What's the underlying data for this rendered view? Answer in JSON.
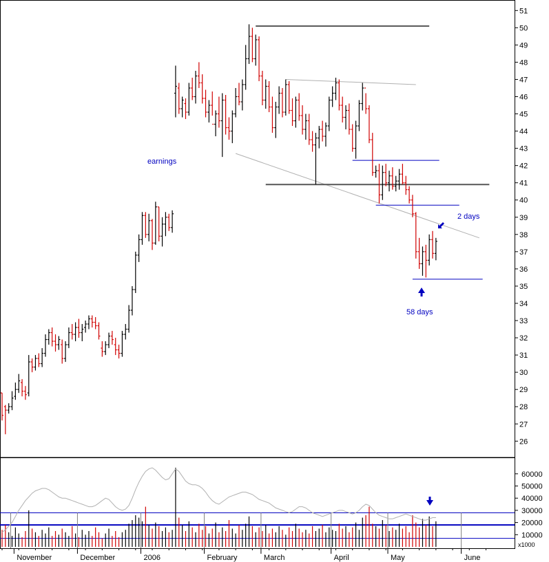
{
  "chart_data": [
    {
      "type": "ohlc",
      "title": "",
      "ylim": [
        25,
        51.8
      ],
      "yticks": [
        26,
        27,
        28,
        29,
        30,
        31,
        32,
        33,
        34,
        35,
        36,
        37,
        38,
        39,
        40,
        41,
        42,
        43,
        44,
        45,
        46,
        47,
        48,
        49,
        50,
        51
      ],
      "grid": false,
      "colors": {
        "up": "#000000",
        "down": "#d00000",
        "line": "#0000c0",
        "dark_line": "#555555",
        "light_line": "#b0b0b0",
        "note": "#0000c0"
      },
      "annotations": {
        "earnings": "earnings",
        "two_days": "2 days",
        "fifty_eight_days": "58 days"
      },
      "bars": [
        [
          0,
          28.8,
          28.8,
          27.2,
          27.5
        ],
        [
          1,
          28.0,
          28.1,
          26.4,
          27.8
        ],
        [
          2,
          27.8,
          28.2,
          27.6,
          28.0
        ],
        [
          3,
          28.0,
          28.9,
          27.8,
          28.5
        ],
        [
          4,
          28.6,
          29.4,
          28.4,
          29.0
        ],
        [
          5,
          29.0,
          29.9,
          28.8,
          29.5
        ],
        [
          6,
          29.4,
          29.6,
          28.6,
          28.9
        ],
        [
          7,
          28.9,
          29.2,
          28.4,
          28.7
        ],
        [
          8,
          28.8,
          31.0,
          28.6,
          30.6
        ],
        [
          9,
          30.6,
          30.8,
          30.0,
          30.3
        ],
        [
          10,
          30.3,
          31.0,
          30.1,
          30.8
        ],
        [
          11,
          30.8,
          31.1,
          30.3,
          30.5
        ],
        [
          12,
          30.5,
          31.4,
          30.3,
          31.1
        ],
        [
          13,
          31.1,
          32.2,
          30.9,
          31.9
        ],
        [
          14,
          31.9,
          32.5,
          31.6,
          32.3
        ],
        [
          15,
          32.3,
          32.6,
          31.5,
          31.8
        ],
        [
          16,
          31.8,
          32.2,
          31.2,
          31.6
        ],
        [
          17,
          31.6,
          32.1,
          31.3,
          31.9
        ],
        [
          18,
          31.6,
          31.9,
          30.5,
          30.8
        ],
        [
          19,
          30.8,
          31.8,
          30.6,
          31.6
        ],
        [
          20,
          31.6,
          32.6,
          31.4,
          32.3
        ],
        [
          21,
          32.3,
          32.8,
          31.9,
          32.2
        ],
        [
          22,
          32.2,
          32.9,
          31.8,
          32.6
        ],
        [
          23,
          32.6,
          33.1,
          32.0,
          32.3
        ],
        [
          24,
          32.3,
          32.8,
          31.8,
          32.5
        ],
        [
          25,
          32.6,
          33.0,
          32.3,
          32.8
        ],
        [
          26,
          32.8,
          33.3,
          32.5,
          33.1
        ],
        [
          27,
          33.1,
          33.3,
          32.6,
          32.9
        ],
        [
          28,
          32.9,
          33.2,
          32.5,
          32.7
        ],
        [
          29,
          32.7,
          32.9,
          31.9,
          32.1
        ],
        [
          30,
          31.4,
          31.8,
          30.9,
          31.2
        ],
        [
          31,
          31.2,
          31.8,
          31.0,
          31.6
        ],
        [
          32,
          31.6,
          32.3,
          31.4,
          32.1
        ],
        [
          33,
          32.1,
          32.4,
          31.6,
          31.9
        ],
        [
          34,
          31.6,
          32.0,
          31.0,
          31.3
        ],
        [
          35,
          31.3,
          31.6,
          30.8,
          31.1
        ],
        [
          36,
          31.1,
          32.4,
          30.9,
          32.2
        ],
        [
          37,
          32.2,
          32.8,
          31.9,
          32.5
        ],
        [
          38,
          32.5,
          33.9,
          32.3,
          33.6
        ],
        [
          39,
          33.6,
          35.0,
          33.3,
          34.8
        ],
        [
          40,
          34.8,
          37.0,
          34.6,
          36.8
        ],
        [
          41,
          36.8,
          38.0,
          36.4,
          37.7
        ],
        [
          42,
          37.7,
          39.3,
          37.4,
          39.1
        ],
        [
          43,
          39.1,
          39.3,
          37.8,
          38.0
        ],
        [
          44,
          38.0,
          39.2,
          37.6,
          38.8
        ],
        [
          45,
          38.8,
          38.9,
          37.1,
          37.5
        ],
        [
          46,
          37.5,
          39.9,
          37.4,
          39.6
        ],
        [
          47,
          39.6,
          39.6,
          37.6,
          37.9
        ],
        [
          48,
          37.9,
          39.0,
          37.3,
          38.6
        ],
        [
          49,
          38.6,
          39.3,
          37.9,
          39.0
        ],
        [
          50,
          39.0,
          39.2,
          38.2,
          38.4
        ],
        [
          51,
          38.4,
          39.4,
          38.1,
          39.2
        ],
        [
          52,
          46.2,
          47.8,
          44.8,
          46.6
        ],
        [
          53,
          46.5,
          46.8,
          45.0,
          45.3
        ],
        [
          54,
          45.3,
          46.0,
          44.8,
          45.8
        ],
        [
          55,
          45.6,
          45.9,
          44.7,
          45.1
        ],
        [
          56,
          45.1,
          46.8,
          44.9,
          46.5
        ],
        [
          57,
          46.5,
          47.1,
          45.8,
          46.0
        ],
        [
          58,
          46.0,
          47.5,
          45.6,
          47.2
        ],
        [
          59,
          47.2,
          48.0,
          46.5,
          46.8
        ],
        [
          60,
          46.8,
          47.3,
          45.6,
          45.9
        ],
        [
          61,
          45.9,
          46.4,
          44.8,
          45.1
        ],
        [
          62,
          45.1,
          45.8,
          44.5,
          45.5
        ],
        [
          63,
          45.5,
          46.3,
          44.9,
          44.4
        ],
        [
          64,
          44.4,
          45.2,
          43.7,
          45.0
        ],
        [
          65,
          45.0,
          46.0,
          44.2,
          44.6
        ],
        [
          66,
          44.6,
          46.2,
          42.5,
          45.8
        ],
        [
          67,
          45.8,
          46.1,
          43.8,
          44.2
        ],
        [
          68,
          44.2,
          44.8,
          43.5,
          44.0
        ],
        [
          69,
          44.0,
          45.2,
          43.3,
          45.0
        ],
        [
          70,
          45.0,
          46.5,
          44.8,
          46.0
        ],
        [
          71,
          46.0,
          46.8,
          45.5,
          45.7
        ],
        [
          72,
          45.7,
          47.0,
          45.2,
          46.7
        ],
        [
          73,
          46.7,
          49.0,
          46.4,
          48.2
        ],
        [
          74,
          48.2,
          50.2,
          47.9,
          49.5
        ],
        [
          75,
          49.5,
          50.0,
          48.0,
          48.2
        ],
        [
          76,
          48.2,
          49.6,
          47.8,
          49.3
        ],
        [
          77,
          49.3,
          49.5,
          46.9,
          47.2
        ],
        [
          78,
          47.2,
          47.5,
          45.5,
          45.8
        ],
        [
          79,
          45.8,
          47.0,
          45.3,
          46.6
        ],
        [
          80,
          46.6,
          46.9,
          45.1,
          45.4
        ],
        [
          81,
          45.4,
          46.0,
          43.9,
          44.2
        ],
        [
          82,
          44.2,
          45.7,
          43.6,
          45.4
        ],
        [
          83,
          45.4,
          46.6,
          45.0,
          46.2
        ],
        [
          84,
          46.2,
          46.5,
          44.8,
          45.1
        ],
        [
          85,
          45.1,
          47.0,
          44.9,
          46.7
        ],
        [
          86,
          46.7,
          46.9,
          45.0,
          45.2
        ],
        [
          87,
          45.2,
          45.9,
          44.3,
          44.6
        ],
        [
          88,
          44.6,
          46.0,
          44.2,
          45.8
        ],
        [
          89,
          45.8,
          46.2,
          44.6,
          44.9
        ],
        [
          90,
          44.9,
          45.5,
          43.8,
          44.1
        ],
        [
          91,
          44.1,
          45.0,
          43.5,
          44.6
        ],
        [
          92,
          44.6,
          45.0,
          43.2,
          43.5
        ],
        [
          93,
          43.5,
          44.0,
          42.8,
          43.2
        ],
        [
          94,
          43.2,
          43.9,
          40.9,
          43.6
        ],
        [
          95,
          43.6,
          44.3,
          43.0,
          44.1
        ],
        [
          96,
          44.1,
          44.6,
          43.4,
          43.7
        ],
        [
          97,
          43.7,
          44.5,
          43.1,
          44.3
        ],
        [
          98,
          44.3,
          46.0,
          44.0,
          45.8
        ],
        [
          99,
          45.8,
          46.6,
          45.4,
          46.2
        ],
        [
          100,
          46.2,
          47.1,
          45.8,
          46.8
        ],
        [
          101,
          46.8,
          47.0,
          45.2,
          45.5
        ],
        [
          102,
          45.5,
          46.0,
          44.5,
          44.8
        ],
        [
          103,
          44.8,
          45.5,
          44.1,
          45.2
        ],
        [
          104,
          45.2,
          45.6,
          43.8,
          44.1
        ],
        [
          105,
          44.1,
          44.4,
          42.8,
          43.0
        ],
        [
          106,
          43.0,
          44.6,
          42.4,
          44.3
        ],
        [
          107,
          44.3,
          45.8,
          44.0,
          45.6
        ],
        [
          108,
          45.6,
          46.8,
          45.2,
          46.5
        ],
        [
          109,
          46.5,
          46.2,
          45.0,
          45.3
        ],
        [
          110,
          45.3,
          45.5,
          43.3,
          43.5
        ],
        [
          111,
          43.5,
          43.9,
          41.4,
          41.6
        ],
        [
          112,
          41.6,
          42.0,
          41.3,
          41.7
        ],
        [
          113,
          41.7,
          42.1,
          39.8,
          40.3
        ],
        [
          114,
          40.3,
          42.0,
          40.0,
          41.6
        ],
        [
          115,
          41.6,
          42.1,
          40.8,
          41.0
        ],
        [
          116,
          41.0,
          41.7,
          40.5,
          41.4
        ],
        [
          117,
          41.4,
          41.9,
          40.6,
          40.8
        ],
        [
          118,
          40.8,
          41.4,
          40.5,
          41.1
        ],
        [
          119,
          41.1,
          41.8,
          40.6,
          41.5
        ],
        [
          120,
          41.5,
          42.1,
          40.9,
          41.0
        ],
        [
          121,
          41.0,
          41.4,
          40.3,
          40.6
        ],
        [
          122,
          40.6,
          40.8,
          39.8,
          40.0
        ],
        [
          123,
          40.0,
          40.3,
          39.0,
          39.2
        ],
        [
          124,
          39.2,
          39.3,
          36.6,
          37.0
        ],
        [
          125,
          37.0,
          37.8,
          36.0,
          36.3
        ],
        [
          126,
          36.3,
          37.3,
          35.6,
          37.0
        ],
        [
          127,
          37.0,
          37.4,
          35.5,
          36.5
        ],
        [
          128,
          36.5,
          38.0,
          36.2,
          37.7
        ],
        [
          129,
          37.7,
          38.2,
          36.6,
          36.9
        ],
        [
          130,
          36.9,
          37.8,
          36.5,
          37.6
        ]
      ]
    },
    {
      "type": "bar",
      "title": "",
      "unit_label": "x1000",
      "ylim": [
        0,
        70000
      ],
      "yticks": [
        10000,
        20000,
        30000,
        40000,
        50000,
        60000
      ],
      "ytick_labels": [
        "10000",
        "20000",
        "30000",
        "40000",
        "50000",
        "60000"
      ],
      "reference_levels": [
        7000,
        18000,
        28000
      ],
      "x_labels": [
        {
          "label": "November",
          "bar": 4
        },
        {
          "label": "December",
          "bar": 23
        },
        {
          "label": "2006",
          "bar": 42
        },
        {
          "label": "February",
          "bar": 61
        },
        {
          "label": "March",
          "bar": 78
        },
        {
          "label": "April",
          "bar": 99
        },
        {
          "label": "May",
          "bar": 116
        },
        {
          "label": "June",
          "bar": 138
        }
      ],
      "month_starts": [
        3,
        23,
        42,
        61,
        78,
        99,
        116,
        138
      ],
      "volume": [
        14000,
        18000,
        12000,
        9000,
        16000,
        11000,
        8000,
        13000,
        30000,
        15000,
        12000,
        9000,
        14000,
        11000,
        16000,
        9000,
        13000,
        10000,
        15000,
        12000,
        9000,
        17000,
        11000,
        8000,
        14000,
        10000,
        13000,
        9000,
        16000,
        12000,
        7000,
        11000,
        15000,
        9000,
        13000,
        8000,
        12000,
        14000,
        19000,
        22000,
        26000,
        24000,
        21000,
        33000,
        18000,
        15000,
        20000,
        17000,
        13000,
        16000,
        12000,
        14000,
        65000,
        24000,
        18000,
        13000,
        21000,
        16000,
        12000,
        19000,
        14000,
        17000,
        11000,
        15000,
        20000,
        12000,
        16000,
        13000,
        22000,
        15000,
        11000,
        18000,
        14000,
        19000,
        25000,
        17000,
        12000,
        16000,
        13000,
        18000,
        11000,
        15000,
        12000,
        17000,
        14000,
        10000,
        16000,
        13000,
        19000,
        15000,
        12000,
        14000,
        11000,
        17000,
        13000,
        15000,
        18000,
        12000,
        16000,
        14000,
        13000,
        19000,
        15000,
        17000,
        12000,
        16000,
        20000,
        14000,
        24000,
        26000,
        33000,
        19000,
        17000,
        15000,
        22000,
        18000,
        13000,
        16000,
        14000,
        19000,
        15000,
        17000,
        12000,
        26000,
        20000,
        16000,
        23000,
        18000,
        25000,
        17000,
        21000
      ],
      "moving_average": [
        12000,
        14000,
        17000,
        20000,
        25000,
        30000,
        34000,
        38000,
        41000,
        44000,
        46000,
        47000,
        48000,
        48000,
        47000,
        45000,
        43000,
        41000,
        40000,
        40000,
        39000,
        38000,
        37000,
        36000,
        35000,
        34000,
        33000,
        33000,
        34000,
        36000,
        38000,
        40000,
        39000,
        36000,
        33000,
        31000,
        30000,
        31000,
        34000,
        40000,
        47000,
        53000,
        58000,
        62000,
        64000,
        65000,
        63000,
        60000,
        57000,
        55000,
        56000,
        60000,
        64000,
        62000,
        58000,
        54000,
        52000,
        51000,
        51000,
        50000,
        48000,
        45000,
        41000,
        38000,
        36000,
        35000,
        37000,
        39000,
        41000,
        42000,
        43000,
        44000,
        45000,
        45000,
        44000,
        43000,
        41000,
        39000,
        38000,
        37000,
        36000,
        34000,
        32000,
        31000,
        30000,
        29000,
        28000,
        29000,
        31000,
        33000,
        33000,
        32000,
        30000,
        28000,
        27000,
        26000,
        25000,
        26000,
        27000,
        28000,
        29000,
        30000,
        30000,
        29000,
        28000,
        27000,
        28000,
        30000,
        33000,
        35000,
        34000,
        31000,
        28000,
        26000,
        25000,
        24000,
        23000,
        23000,
        24000,
        25000,
        26000,
        27000,
        26000,
        25000,
        24000,
        23000,
        22000,
        22000,
        23000,
        24000,
        24000
      ]
    }
  ]
}
